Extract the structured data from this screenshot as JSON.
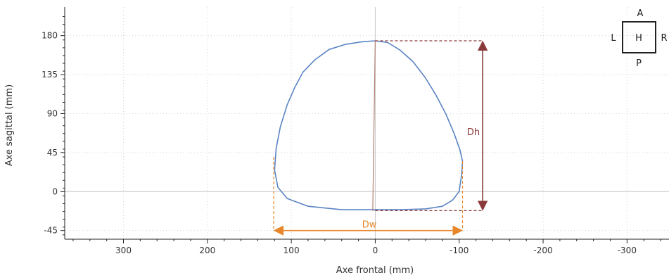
{
  "chart_data": {
    "type": "line",
    "xlabel": "Axe frontal (mm)",
    "ylabel": "Axe sagittal (mm)",
    "xlim": [
      -350,
      370
    ],
    "xreversed": true,
    "ylim": [
      -55,
      213
    ],
    "xticks": [
      300,
      200,
      100,
      0,
      -100,
      -200,
      -300
    ],
    "xtick_labels": [
      "300",
      "200",
      "100",
      "0",
      "-100",
      "-200",
      "-300"
    ],
    "yticks": [
      180,
      135,
      90,
      45,
      0,
      -45
    ],
    "ytick_labels": [
      "180",
      "135",
      "90",
      "45",
      "0",
      "-45"
    ],
    "grid": true,
    "series": [
      {
        "role": "contour",
        "color": "#5b84c4",
        "x": [
          0,
          -15,
          -30,
          -45,
          -60,
          -72,
          -84,
          -94,
          -101,
          -104,
          -103,
          -100,
          -92,
          -80,
          -60,
          -30,
          0,
          40,
          80,
          105,
          116,
          120,
          118,
          113,
          105,
          96,
          86,
          72,
          55,
          35,
          15,
          0
        ],
        "y": [
          174,
          172,
          163,
          150,
          131,
          112,
          90,
          67,
          48,
          35,
          20,
          0,
          -10,
          -17,
          -20,
          -21,
          -21,
          -21,
          -17,
          -8,
          5,
          25,
          50,
          75,
          100,
          120,
          138,
          152,
          164,
          170,
          173,
          174
        ]
      },
      {
        "role": "vertical-axis-line",
        "color": "#b08070",
        "x": [
          0,
          3
        ],
        "y": [
          174,
          -22
        ]
      }
    ],
    "annotations": {
      "dh": {
        "label": "Dh",
        "color": "#8b3a3a",
        "x": -128,
        "y_top": 174,
        "y_bottom": -22,
        "label_y": 65
      },
      "dw": {
        "label": "Dw",
        "color": "#e8862a",
        "y": -45,
        "x_left": 121,
        "x_right": -104,
        "label_x": 7
      }
    },
    "orientation": {
      "top": "A",
      "bottom": "P",
      "left": "L",
      "right": "R",
      "center": "H"
    }
  }
}
